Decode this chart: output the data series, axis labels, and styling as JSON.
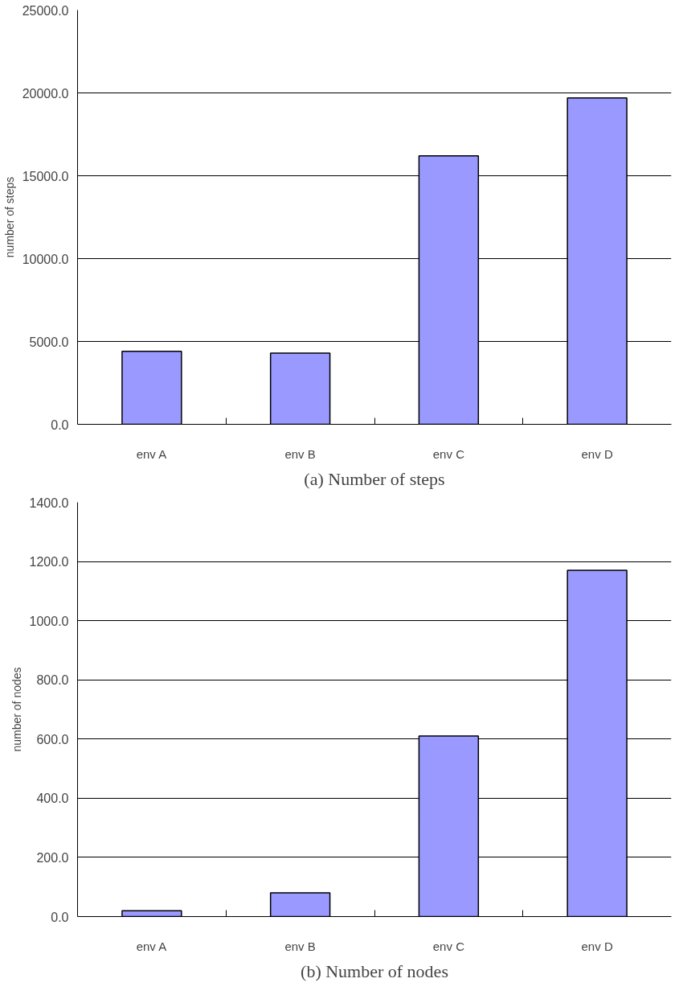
{
  "chart_data": [
    {
      "type": "bar",
      "title": "(a) Number of steps",
      "ylabel": "number of steps",
      "categories": [
        "env A",
        "env B",
        "env C",
        "env D"
      ],
      "values": [
        4400,
        4300,
        16200,
        19700
      ],
      "color": "#9999ff",
      "ylim": [
        0,
        25000
      ],
      "yticks": [
        {
          "value": 0,
          "label": "0.0"
        },
        {
          "value": 5000,
          "label": "5000.0"
        },
        {
          "value": 10000,
          "label": "10000.0"
        },
        {
          "value": 15000,
          "label": "15000.0"
        },
        {
          "value": 20000,
          "label": "20000.0"
        },
        {
          "value": 25000,
          "label": "25000.0"
        }
      ],
      "grid": "y"
    },
    {
      "type": "bar",
      "title": "(b) Number of nodes",
      "ylabel": "number of nodes",
      "categories": [
        "env A",
        "env B",
        "env C",
        "env D"
      ],
      "values": [
        20,
        80,
        610,
        1170
      ],
      "color": "#9999ff",
      "ylim": [
        0,
        1400
      ],
      "yticks": [
        {
          "value": 0,
          "label": "0.0"
        },
        {
          "value": 200,
          "label": "200.0"
        },
        {
          "value": 400,
          "label": "400.0"
        },
        {
          "value": 600,
          "label": "600.0"
        },
        {
          "value": 800,
          "label": "800.0"
        },
        {
          "value": 1000,
          "label": "1000.0"
        },
        {
          "value": 1200,
          "label": "1200.0"
        },
        {
          "value": 1400,
          "label": "1400.0"
        }
      ],
      "grid": "y"
    }
  ]
}
